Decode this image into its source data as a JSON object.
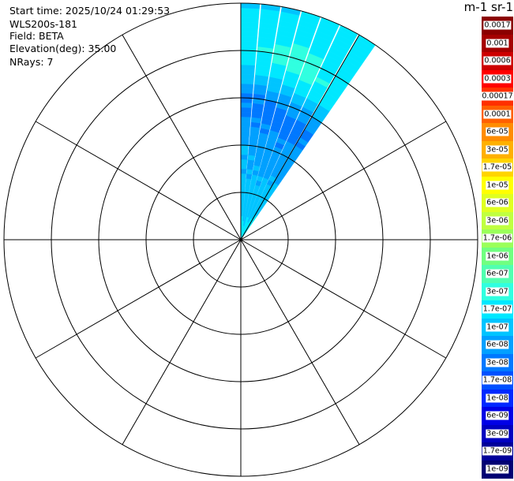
{
  "info": {
    "start_time": "Start time: 2025/10/24 01:29:53",
    "instrument": "WLS200s-181",
    "field": "Field: BETA",
    "elevation": "Elevation(deg): 35.00",
    "nrays": "NRays: 7"
  },
  "colorbar": {
    "title": "m-1 sr-1",
    "labels": [
      "0.0017",
      "0.001",
      "0.0006",
      "0.0003",
      "0.00017",
      "0.0001",
      "6e-05",
      "3e-05",
      "1.7e-05",
      "1e-05",
      "6e-06",
      "3e-06",
      "1.7e-06",
      "1e-06",
      "6e-07",
      "3e-07",
      "1.7e-07",
      "1e-07",
      "6e-08",
      "3e-08",
      "1.7e-08",
      "1e-08",
      "6e-09",
      "3e-09",
      "1.7e-09",
      "1e-09"
    ],
    "colors": [
      "#8b0000",
      "#a50000",
      "#cd0000",
      "#ff0000",
      "#ff3000",
      "#ff6000",
      "#ff8c00",
      "#ffb000",
      "#ffd400",
      "#ffff00",
      "#e0ff20",
      "#c0ff40",
      "#9aff5a",
      "#70ff80",
      "#50ffb0",
      "#30ffe0",
      "#00e8ff",
      "#00c4ff",
      "#00a0ff",
      "#0078ff",
      "#0050ff",
      "#0028ff",
      "#0000e6",
      "#0000c0",
      "#00009a",
      "#000073"
    ]
  },
  "chart_data": {
    "type": "heatmap",
    "projection": "polar-ppi",
    "field": "BETA",
    "units": "m-1 sr-1",
    "elevation_deg": 35.0,
    "n_rays": 7,
    "rays": [
      {
        "azimuth_deg": 0,
        "color_index_by_range": [
          16,
          16,
          16,
          16,
          16,
          17,
          17,
          17,
          17,
          17,
          17,
          17,
          17,
          17,
          18,
          17,
          17,
          18,
          17,
          17,
          18,
          18,
          18,
          18,
          18,
          18,
          19,
          19,
          18,
          19,
          19,
          18,
          18,
          17,
          17,
          17,
          17,
          16,
          16,
          16,
          16,
          16,
          16,
          16,
          16,
          16,
          16,
          16,
          16,
          17
        ]
      },
      {
        "azimuth_deg": 5,
        "color_index_by_range": [
          16,
          16,
          16,
          16,
          17,
          17,
          17,
          17,
          17,
          17,
          17,
          17,
          17,
          18,
          17,
          18,
          18,
          17,
          18,
          18,
          18,
          18,
          18,
          18,
          19,
          18,
          19,
          19,
          19,
          18,
          19,
          18,
          18,
          17,
          17,
          16,
          16,
          16,
          16,
          16,
          15,
          16,
          16,
          16,
          16,
          16,
          16,
          16,
          16,
          17
        ]
      },
      {
        "azimuth_deg": 10,
        "color_index_by_range": [
          16,
          16,
          16,
          17,
          17,
          17,
          17,
          17,
          17,
          17,
          17,
          17,
          17,
          17,
          18,
          17,
          18,
          18,
          18,
          18,
          18,
          18,
          18,
          19,
          18,
          19,
          19,
          19,
          19,
          19,
          18,
          18,
          17,
          17,
          17,
          16,
          16,
          16,
          15,
          15,
          15,
          15,
          16,
          16,
          16,
          16,
          16,
          16,
          16,
          17
        ]
      },
      {
        "azimuth_deg": 15,
        "color_index_by_range": [
          16,
          16,
          16,
          16,
          16,
          17,
          17,
          17,
          17,
          17,
          17,
          17,
          18,
          17,
          18,
          18,
          18,
          18,
          18,
          18,
          18,
          18,
          18,
          18,
          19,
          19,
          19,
          19,
          19,
          18,
          18,
          18,
          17,
          17,
          16,
          16,
          16,
          15,
          15,
          15,
          15,
          15,
          15,
          16,
          16,
          16,
          16,
          16,
          16,
          16
        ]
      },
      {
        "azimuth_deg": 20,
        "color_index_by_range": [
          16,
          16,
          16,
          16,
          17,
          17,
          17,
          17,
          17,
          17,
          17,
          17,
          17,
          17,
          18,
          18,
          18,
          18,
          18,
          18,
          18,
          19,
          18,
          19,
          19,
          19,
          19,
          19,
          18,
          18,
          18,
          17,
          17,
          16,
          16,
          16,
          15,
          15,
          15,
          15,
          15,
          15,
          16,
          16,
          16,
          16,
          16,
          16,
          16,
          16
        ]
      },
      {
        "azimuth_deg": 25,
        "color_index_by_range": [
          16,
          16,
          16,
          16,
          16,
          17,
          17,
          17,
          17,
          17,
          17,
          17,
          17,
          18,
          17,
          18,
          18,
          18,
          18,
          18,
          18,
          18,
          18,
          19,
          19,
          19,
          19,
          19,
          18,
          18,
          18,
          17,
          17,
          16,
          16,
          16,
          16,
          15,
          16,
          16,
          16,
          16,
          16,
          16,
          16,
          16,
          16,
          16,
          16,
          16
        ]
      },
      {
        "azimuth_deg": 30,
        "color_index_by_range": [
          16,
          16,
          16,
          16,
          16,
          16,
          17,
          17,
          17,
          17,
          17,
          17,
          17,
          17,
          18,
          18,
          18,
          18,
          18,
          18,
          18,
          18,
          18,
          19,
          18,
          19,
          19,
          18,
          18,
          18,
          17,
          17,
          17,
          16,
          16,
          16,
          16,
          16,
          16,
          16,
          16,
          16,
          16,
          16,
          16,
          16,
          16,
          16,
          16,
          16
        ]
      }
    ],
    "beam_width_deg": 5,
    "range_gates": 50,
    "range_rings": 5,
    "spokes_deg": [
      0,
      30,
      60,
      90,
      120,
      150,
      180,
      210,
      240,
      270,
      300,
      330
    ]
  }
}
